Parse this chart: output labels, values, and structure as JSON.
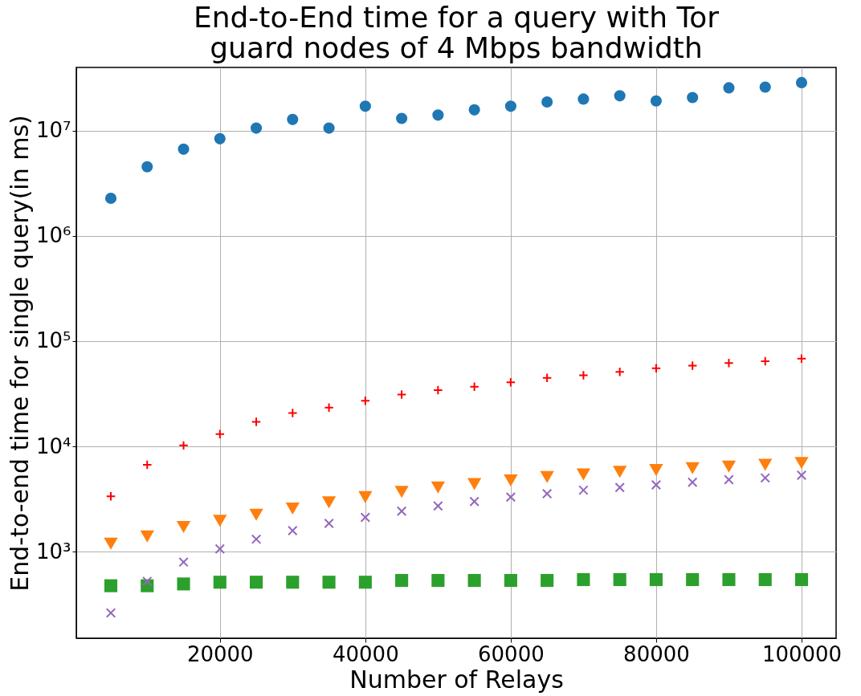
{
  "chart_data": {
    "type": "scatter",
    "title": [
      "End-to-End time for a query with Tor",
      "guard nodes of 4 Mbps bandwidth"
    ],
    "xlabel": "Number of Relays",
    "ylabel": "End-to-end time for single query(in ms)",
    "x": [
      5000,
      10000,
      15000,
      20000,
      25000,
      30000,
      35000,
      40000,
      45000,
      50000,
      55000,
      60000,
      65000,
      70000,
      75000,
      80000,
      85000,
      90000,
      95000,
      100000
    ],
    "series": [
      {
        "color": "#1f77b4",
        "marker": "circle",
        "values": [
          2280000,
          4550000,
          6680000,
          8400000,
          10600000,
          12800000,
          10600000,
          17100000,
          13100000,
          14100000,
          15800000,
          17100000,
          18800000,
          20000000,
          21500000,
          19200000,
          20700000,
          25600000,
          26000000,
          28700000
        ]
      },
      {
        "color": "#ff0000",
        "marker": "plus",
        "values": [
          3350,
          6680,
          10200,
          13100,
          17100,
          20700,
          23300,
          27100,
          31000,
          34200,
          36800,
          40600,
          44700,
          47300,
          51100,
          55200,
          58400,
          61900,
          64300,
          68100
        ]
      },
      {
        "color": "#ff7f0e",
        "marker": "triangle_down",
        "values": [
          1190,
          1390,
          1710,
          1960,
          2240,
          2560,
          2930,
          3290,
          3690,
          4060,
          4380,
          4730,
          5110,
          5410,
          5730,
          5960,
          6190,
          6430,
          6680,
          6950
        ]
      },
      {
        "color": "#2ca02c",
        "marker": "square",
        "values": [
          473,
          473,
          492,
          511,
          511,
          511,
          511,
          511,
          531,
          531,
          531,
          531,
          531,
          541,
          541,
          541,
          541,
          541,
          541,
          541
        ]
      },
      {
        "color": "#9467bd",
        "marker": "x",
        "values": [
          261,
          521,
          794,
          1060,
          1310,
          1580,
          1850,
          2110,
          2420,
          2710,
          2990,
          3290,
          3550,
          3830,
          4060,
          4300,
          4550,
          4820,
          5010,
          5310
        ]
      }
    ],
    "log": "y",
    "xlim": [
      250,
      104750
    ],
    "ylim": [
      150,
      40000000
    ],
    "xticks": [
      20000,
      40000,
      60000,
      80000,
      100000
    ],
    "yticks": [
      {
        "value": 1000,
        "label": "10³"
      },
      {
        "value": 10000,
        "label": "10⁴"
      },
      {
        "value": 100000,
        "label": "10⁵"
      },
      {
        "value": 1000000,
        "label": "10⁶"
      },
      {
        "value": 10000000,
        "label": "10⁷"
      }
    ],
    "grid": true
  }
}
